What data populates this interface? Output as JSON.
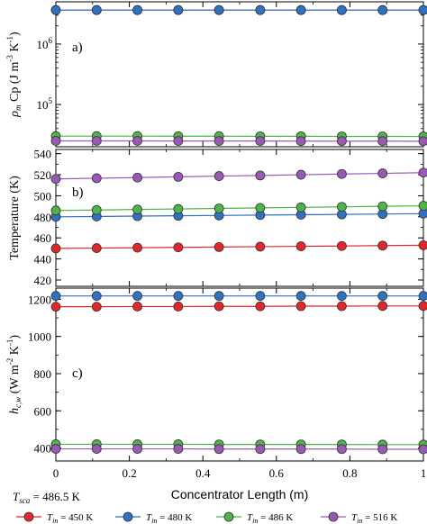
{
  "figure": {
    "xlabel": "Concentrator Length (m)",
    "note_prefix": "T",
    "note_sub": "sca",
    "note_value": " = 486.5 K"
  },
  "legend": [
    {
      "prefix": "T",
      "sub": "in",
      "value": " = 450 K",
      "color": "#e0282c"
    },
    {
      "prefix": "T",
      "sub": "in",
      "value": " = 480 K",
      "color": "#2f72c1"
    },
    {
      "prefix": "T",
      "sub": "in",
      "value": " = 486 K",
      "color": "#4db34a"
    },
    {
      "prefix": "T",
      "sub": "in",
      "value": " = 516 K",
      "color": "#9b59b6"
    }
  ],
  "chart_data": [
    {
      "type": "line",
      "panel_label": "a)",
      "ylabel_parts": [
        "ρ",
        "m",
        " Cp (J m",
        "-3",
        " K",
        "-1",
        ")"
      ],
      "yscale": "log",
      "ylim": [
        20000,
        5000000
      ],
      "yticks": [
        {
          "value": 100000,
          "base": "10",
          "exp": "5"
        },
        {
          "value": 1000000,
          "base": "10",
          "exp": "6"
        }
      ],
      "x": [
        0,
        0.111,
        0.222,
        0.333,
        0.444,
        0.556,
        0.667,
        0.778,
        0.889,
        1
      ],
      "series": [
        {
          "color": "#e0282c",
          "values": [
            3650000,
            3650000,
            3650000,
            3650000,
            3650000,
            3650000,
            3650000,
            3650000,
            3650000,
            3650000
          ]
        },
        {
          "color": "#2f72c1",
          "values": [
            3650000,
            3650000,
            3650000,
            3650000,
            3650000,
            3650000,
            3650000,
            3650000,
            3650000,
            3650000
          ]
        },
        {
          "color": "#4db34a",
          "values": [
            30000,
            30000,
            30000,
            29900,
            29900,
            29800,
            29800,
            29700,
            29700,
            29600
          ]
        },
        {
          "color": "#9b59b6",
          "values": [
            25000,
            25000,
            25000,
            24900,
            24900,
            24900,
            24800,
            24800,
            24800,
            24700
          ]
        }
      ]
    },
    {
      "type": "line",
      "panel_label": "b)",
      "ylabel_parts": [
        "Temperature (K)"
      ],
      "yscale": "linear",
      "ylim": [
        414,
        544
      ],
      "yticks": [
        {
          "value": 420,
          "label": "420"
        },
        {
          "value": 440,
          "label": "440"
        },
        {
          "value": 460,
          "label": "460"
        },
        {
          "value": 480,
          "label": "480"
        },
        {
          "value": 500,
          "label": "500"
        },
        {
          "value": 520,
          "label": "520"
        },
        {
          "value": 540,
          "label": "540"
        }
      ],
      "x": [
        0,
        0.111,
        0.222,
        0.333,
        0.444,
        0.556,
        0.667,
        0.778,
        0.889,
        1
      ],
      "series": [
        {
          "color": "#e0282c",
          "values": [
            450.0,
            450.3,
            450.7,
            451.0,
            451.3,
            451.7,
            452.0,
            452.3,
            452.7,
            453.0
          ]
        },
        {
          "color": "#2f72c1",
          "values": [
            480.0,
            480.3,
            480.7,
            481.0,
            481.3,
            481.7,
            482.0,
            482.3,
            482.7,
            483.0
          ]
        },
        {
          "color": "#4db34a",
          "values": [
            486.0,
            486.5,
            487.0,
            487.5,
            488.0,
            488.5,
            489.0,
            489.5,
            490.0,
            490.5
          ]
        },
        {
          "color": "#9b59b6",
          "values": [
            516.0,
            516.7,
            517.3,
            518.0,
            518.7,
            519.3,
            520.0,
            520.7,
            521.3,
            522.0
          ]
        }
      ]
    },
    {
      "type": "line",
      "panel_label": "c)",
      "ylabel_parts": [
        "h",
        "c,w",
        " (W m",
        "-2",
        " K",
        "-1",
        ")"
      ],
      "yscale": "linear",
      "ylim": [
        330,
        1260
      ],
      "yticks": [
        {
          "value": 400,
          "label": "400"
        },
        {
          "value": 600,
          "label": "600"
        },
        {
          "value": 800,
          "label": "800"
        },
        {
          "value": 1000,
          "label": "1000"
        },
        {
          "value": 1200,
          "label": "1200"
        }
      ],
      "x": [
        0,
        0.111,
        0.222,
        0.333,
        0.444,
        0.556,
        0.667,
        0.778,
        0.889,
        1
      ],
      "series": [
        {
          "color": "#e0282c",
          "values": [
            1160,
            1160,
            1161,
            1161,
            1162,
            1162,
            1163,
            1163,
            1164,
            1164
          ]
        },
        {
          "color": "#2f72c1",
          "values": [
            1218,
            1218,
            1218,
            1218,
            1218,
            1218,
            1218,
            1218,
            1218,
            1218
          ]
        },
        {
          "color": "#4db34a",
          "values": [
            420,
            420,
            420,
            420,
            419,
            419,
            419,
            419,
            418,
            418
          ]
        },
        {
          "color": "#9b59b6",
          "values": [
            395,
            395,
            395,
            395,
            394,
            394,
            394,
            394,
            393,
            393
          ]
        }
      ]
    }
  ],
  "xticks": [
    {
      "value": 0,
      "label": "0"
    },
    {
      "value": 0.2,
      "label": "0.2"
    },
    {
      "value": 0.4,
      "label": "0.4"
    },
    {
      "value": 0.6,
      "label": "0.6"
    },
    {
      "value": 0.8,
      "label": "0.8"
    },
    {
      "value": 1,
      "label": "1"
    }
  ]
}
